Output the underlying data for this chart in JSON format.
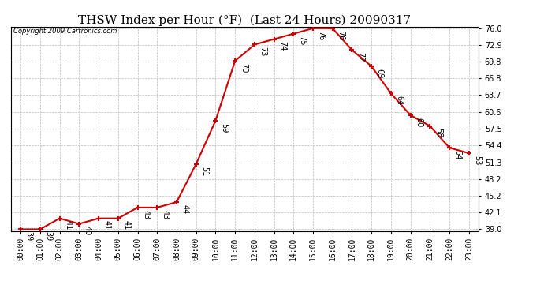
{
  "title": "THSW Index per Hour (°F)  (Last 24 Hours) 20090317",
  "copyright": "Copyright 2009 Cartronics.com",
  "hours": [
    "00:00",
    "01:00",
    "02:00",
    "03:00",
    "04:00",
    "05:00",
    "06:00",
    "07:00",
    "08:00",
    "09:00",
    "10:00",
    "11:00",
    "12:00",
    "13:00",
    "14:00",
    "15:00",
    "16:00",
    "17:00",
    "18:00",
    "19:00",
    "20:00",
    "21:00",
    "22:00",
    "23:00"
  ],
  "values": [
    39,
    39,
    41,
    40,
    41,
    41,
    43,
    43,
    44,
    51,
    59,
    70,
    73,
    74,
    75,
    76,
    76,
    72,
    69,
    64,
    60,
    58,
    54,
    53
  ],
  "ylim_min": 39.0,
  "ylim_max": 76.0,
  "yticks": [
    39.0,
    42.1,
    45.2,
    48.2,
    51.3,
    54.4,
    57.5,
    60.6,
    63.7,
    66.8,
    69.8,
    72.9,
    76.0
  ],
  "line_color": "#cc0000",
  "marker_color": "#cc0000",
  "bg_color": "#ffffff",
  "grid_color": "#bbbbbb",
  "title_fontsize": 11,
  "tick_fontsize": 7,
  "annotation_fontsize": 7
}
